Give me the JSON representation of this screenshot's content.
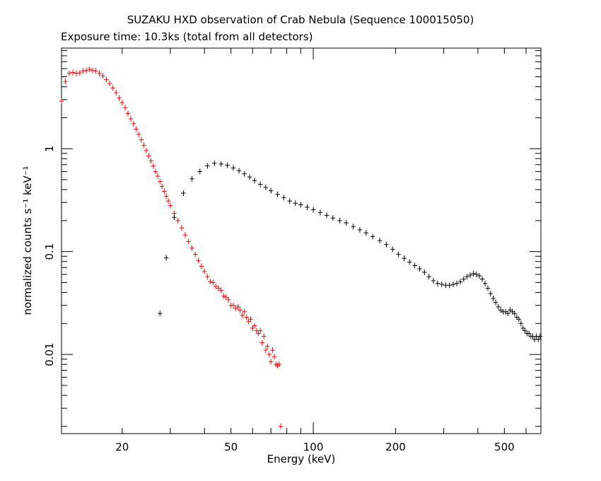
{
  "chart_data": {
    "type": "scatter",
    "title": "SUZAKU HXD observation of Crab Nebula (Sequence 100015050)",
    "subtitle": "Exposure time: 10.3ks (total from all detectors)",
    "xlabel": "Energy (keV)",
    "ylabel": "normalized counts s⁻¹ keV⁻¹",
    "x_scale": "log",
    "y_scale": "log",
    "xlim": [
      12,
      680
    ],
    "ylim": [
      0.0017,
      9.5
    ],
    "x_ticks": [
      20,
      50,
      100,
      200,
      500
    ],
    "y_ticks": [
      0.01,
      0.1,
      1
    ],
    "x_tick_labels": [
      "20",
      "50",
      "100",
      "200",
      "500"
    ],
    "y_tick_labels": [
      "0.01",
      "0.1",
      "1"
    ],
    "grid": false,
    "legend": "none",
    "series": [
      {
        "color": "#ff0000",
        "points": [
          [
            12.0,
            2.9
          ],
          [
            12.4,
            4.5
          ],
          [
            12.8,
            5.4
          ],
          [
            13.2,
            5.5
          ],
          [
            13.6,
            5.4
          ],
          [
            14.0,
            5.45
          ],
          [
            14.4,
            5.7
          ],
          [
            14.8,
            5.75
          ],
          [
            15.2,
            5.9
          ],
          [
            15.6,
            5.75
          ],
          [
            16.0,
            5.7
          ],
          [
            16.5,
            5.4
          ],
          [
            17.0,
            5.1
          ],
          [
            17.5,
            4.7
          ],
          [
            18.0,
            4.3
          ],
          [
            18.5,
            3.9
          ],
          [
            19.0,
            3.5
          ],
          [
            19.5,
            3.1
          ],
          [
            20.0,
            2.8
          ],
          [
            20.5,
            2.5
          ],
          [
            21.0,
            2.2
          ],
          [
            21.5,
            1.95
          ],
          [
            22.0,
            1.75
          ],
          [
            22.5,
            1.55
          ],
          [
            23.0,
            1.38
          ],
          [
            23.5,
            1.22
          ],
          [
            24.0,
            1.08
          ],
          [
            24.5,
            0.96
          ],
          [
            25.0,
            0.85
          ],
          [
            25.5,
            0.76
          ],
          [
            26.0,
            0.68
          ],
          [
            26.5,
            0.6
          ],
          [
            27.0,
            0.54
          ],
          [
            27.5,
            0.48
          ],
          [
            28.0,
            0.43
          ],
          [
            28.5,
            0.385
          ],
          [
            29.0,
            0.345
          ],
          [
            29.5,
            0.31
          ],
          [
            30.0,
            0.28
          ],
          [
            31.0,
            0.235
          ],
          [
            32.0,
            0.2
          ],
          [
            33.0,
            0.17
          ],
          [
            34.0,
            0.145
          ],
          [
            35.0,
            0.125
          ],
          [
            36.0,
            0.108
          ],
          [
            37.0,
            0.094
          ],
          [
            38.0,
            0.082
          ],
          [
            39.0,
            0.072
          ],
          [
            40.0,
            0.064
          ],
          [
            41.0,
            0.057
          ],
          [
            42.0,
            0.051
          ],
          [
            43.0,
            0.05
          ],
          [
            44.0,
            0.046
          ],
          [
            45.0,
            0.044
          ],
          [
            46.0,
            0.042
          ],
          [
            47.0,
            0.037
          ],
          [
            48.0,
            0.036
          ],
          [
            49.0,
            0.034
          ],
          [
            50.0,
            0.03
          ],
          [
            51.0,
            0.03
          ],
          [
            52.0,
            0.028
          ],
          [
            53.0,
            0.029
          ],
          [
            54.0,
            0.027
          ],
          [
            55.0,
            0.024
          ],
          [
            56.0,
            0.026
          ],
          [
            57.0,
            0.023
          ],
          [
            58.0,
            0.021
          ],
          [
            59.0,
            0.022
          ],
          [
            60.0,
            0.018
          ],
          [
            61.0,
            0.019
          ],
          [
            62.0,
            0.017
          ],
          [
            63.0,
            0.016
          ],
          [
            64.0,
            0.017
          ],
          [
            65.0,
            0.013
          ],
          [
            66.0,
            0.015
          ],
          [
            67.0,
            0.011
          ],
          [
            68.0,
            0.012
          ],
          [
            69.0,
            0.01
          ],
          [
            70.0,
            0.0085
          ],
          [
            71.0,
            0.011
          ],
          [
            72.0,
            0.0095
          ],
          [
            73.0,
            0.008
          ],
          [
            74.0,
            0.0078
          ],
          [
            75.0,
            0.008
          ],
          [
            76.0,
            0.002
          ]
        ]
      },
      {
        "color": "#000000",
        "points": [
          [
            27.5,
            0.025
          ],
          [
            29.0,
            0.087
          ],
          [
            31.0,
            0.215
          ],
          [
            33.5,
            0.37
          ],
          [
            36.0,
            0.51
          ],
          [
            38.5,
            0.6
          ],
          [
            41.0,
            0.68
          ],
          [
            43.5,
            0.72
          ],
          [
            46.0,
            0.71
          ],
          [
            48.5,
            0.69
          ],
          [
            51.0,
            0.65
          ],
          [
            53.5,
            0.61
          ],
          [
            56.0,
            0.57
          ],
          [
            58.5,
            0.53
          ],
          [
            61.0,
            0.49
          ],
          [
            64.0,
            0.45
          ],
          [
            67.0,
            0.42
          ],
          [
            70.0,
            0.39
          ],
          [
            74.0,
            0.36
          ],
          [
            78.0,
            0.335
          ],
          [
            82.0,
            0.31
          ],
          [
            86.0,
            0.295
          ],
          [
            90.0,
            0.285
          ],
          [
            95.0,
            0.27
          ],
          [
            100.0,
            0.255
          ],
          [
            106.0,
            0.24
          ],
          [
            112.0,
            0.225
          ],
          [
            118.0,
            0.212
          ],
          [
            125.0,
            0.2
          ],
          [
            132.0,
            0.19
          ],
          [
            140.0,
            0.175
          ],
          [
            148.0,
            0.163
          ],
          [
            156.0,
            0.152
          ],
          [
            165.0,
            0.14
          ],
          [
            175.0,
            0.128
          ],
          [
            185.0,
            0.117
          ],
          [
            195.0,
            0.105
          ],
          [
            205.0,
            0.094
          ],
          [
            215.0,
            0.086
          ],
          [
            225.0,
            0.079
          ],
          [
            235.0,
            0.073
          ],
          [
            245.0,
            0.068
          ],
          [
            255.0,
            0.063
          ],
          [
            265.0,
            0.057
          ],
          [
            275.0,
            0.052
          ],
          [
            285.0,
            0.049
          ],
          [
            295.0,
            0.048
          ],
          [
            305.0,
            0.047
          ],
          [
            315.0,
            0.047
          ],
          [
            325.0,
            0.048
          ],
          [
            335.0,
            0.049
          ],
          [
            345.0,
            0.051
          ],
          [
            355.0,
            0.054
          ],
          [
            365.0,
            0.057
          ],
          [
            375.0,
            0.059
          ],
          [
            385.0,
            0.061
          ],
          [
            395.0,
            0.06
          ],
          [
            405.0,
            0.058
          ],
          [
            415.0,
            0.054
          ],
          [
            425.0,
            0.049
          ],
          [
            435.0,
            0.044
          ],
          [
            445.0,
            0.039
          ],
          [
            455.0,
            0.035
          ],
          [
            465.0,
            0.032
          ],
          [
            475.0,
            0.029
          ],
          [
            485.0,
            0.027
          ],
          [
            495.0,
            0.026
          ],
          [
            505.0,
            0.026
          ],
          [
            515.0,
            0.025
          ],
          [
            525.0,
            0.027
          ],
          [
            535.0,
            0.026
          ],
          [
            545.0,
            0.025
          ],
          [
            555.0,
            0.023
          ],
          [
            565.0,
            0.022
          ],
          [
            575.0,
            0.02
          ],
          [
            585.0,
            0.018
          ],
          [
            595.0,
            0.017
          ],
          [
            605.0,
            0.016
          ],
          [
            615.0,
            0.016
          ],
          [
            625.0,
            0.015
          ],
          [
            635.0,
            0.015
          ],
          [
            645.0,
            0.014
          ],
          [
            655.0,
            0.015
          ],
          [
            665.0,
            0.014
          ],
          [
            675.0,
            0.015
          ]
        ]
      }
    ]
  }
}
